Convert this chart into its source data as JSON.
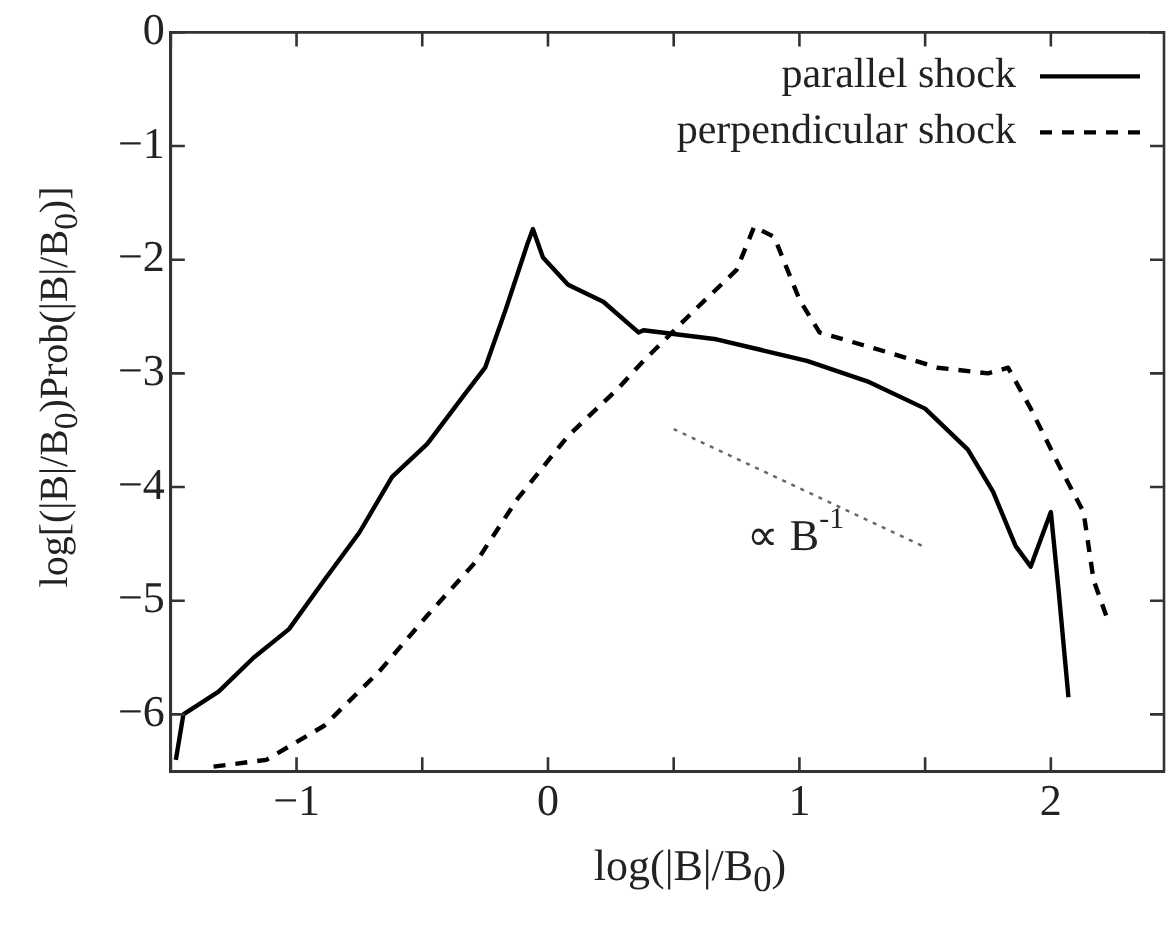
{
  "chart_data": {
    "type": "line",
    "xlabel": "log(|B|/B$_{0}$)",
    "ylabel": "log[(|B|/B$_{0}$)Prob(|B|/B$_{0}$)]",
    "xlim": [
      -1.5,
      2.45
    ],
    "ylim": [
      -6.5,
      0
    ],
    "xticks": [
      {
        "value": -1.5,
        "label": null
      },
      -1,
      {
        "value": -0.5,
        "label": null
      },
      0,
      {
        "value": 0.5,
        "label": null
      },
      1,
      {
        "value": 1.5,
        "label": null
      },
      2
    ],
    "yticks": [
      -6,
      -5,
      -4,
      -3,
      -2,
      -1,
      0
    ],
    "grid": false,
    "legend": "top right",
    "marker": "none",
    "annotations": [
      "∝ B$^{-1}$"
    ],
    "series": [
      {
        "name": "parallel shock",
        "color": "#000000",
        "line_style": "solid",
        "x": [
          -1.48,
          -1.45,
          -1.31,
          -1.17,
          -1.03,
          -0.89,
          -0.75,
          -0.62,
          -0.48,
          -0.33,
          -0.25,
          -0.17,
          -0.08,
          -0.06,
          -0.02,
          0.08,
          0.22,
          0.36,
          0.38,
          0.67,
          1.03,
          1.27,
          1.5,
          1.67,
          1.77,
          1.86,
          1.92,
          2.0,
          2.03,
          2.07
        ],
        "values": [
          -6.4,
          -6.0,
          -5.8,
          -5.5,
          -5.25,
          -4.82,
          -4.4,
          -3.91,
          -3.62,
          -3.18,
          -2.95,
          -2.45,
          -1.85,
          -1.73,
          -1.98,
          -2.22,
          -2.37,
          -2.64,
          -2.62,
          -2.7,
          -2.89,
          -3.07,
          -3.31,
          -3.67,
          -4.04,
          -4.52,
          -4.7,
          -4.22,
          -4.89,
          -5.85
        ]
      },
      {
        "name": "perpendicular shock",
        "color": "#000000",
        "line_style": "dashed",
        "x": [
          -1.33,
          -1.12,
          -0.89,
          -0.67,
          -0.48,
          -0.28,
          -0.12,
          0.08,
          0.28,
          0.38,
          0.58,
          0.75,
          0.82,
          0.9,
          1.0,
          1.08,
          1.36,
          1.55,
          1.75,
          1.83,
          1.92,
          2.03,
          2.13,
          2.17,
          2.22
        ],
        "values": [
          -6.46,
          -6.4,
          -6.1,
          -5.62,
          -5.13,
          -4.64,
          -4.1,
          -3.55,
          -3.13,
          -2.89,
          -2.45,
          -2.09,
          -1.71,
          -1.8,
          -2.35,
          -2.64,
          -2.82,
          -2.95,
          -3.0,
          -2.95,
          -3.31,
          -3.8,
          -4.22,
          -4.82,
          -5.13
        ]
      },
      {
        "color": "#666666",
        "line_style": "dotted",
        "x": [
          0.5,
          1.5
        ],
        "values": [
          -3.49,
          -4.53
        ]
      }
    ]
  }
}
